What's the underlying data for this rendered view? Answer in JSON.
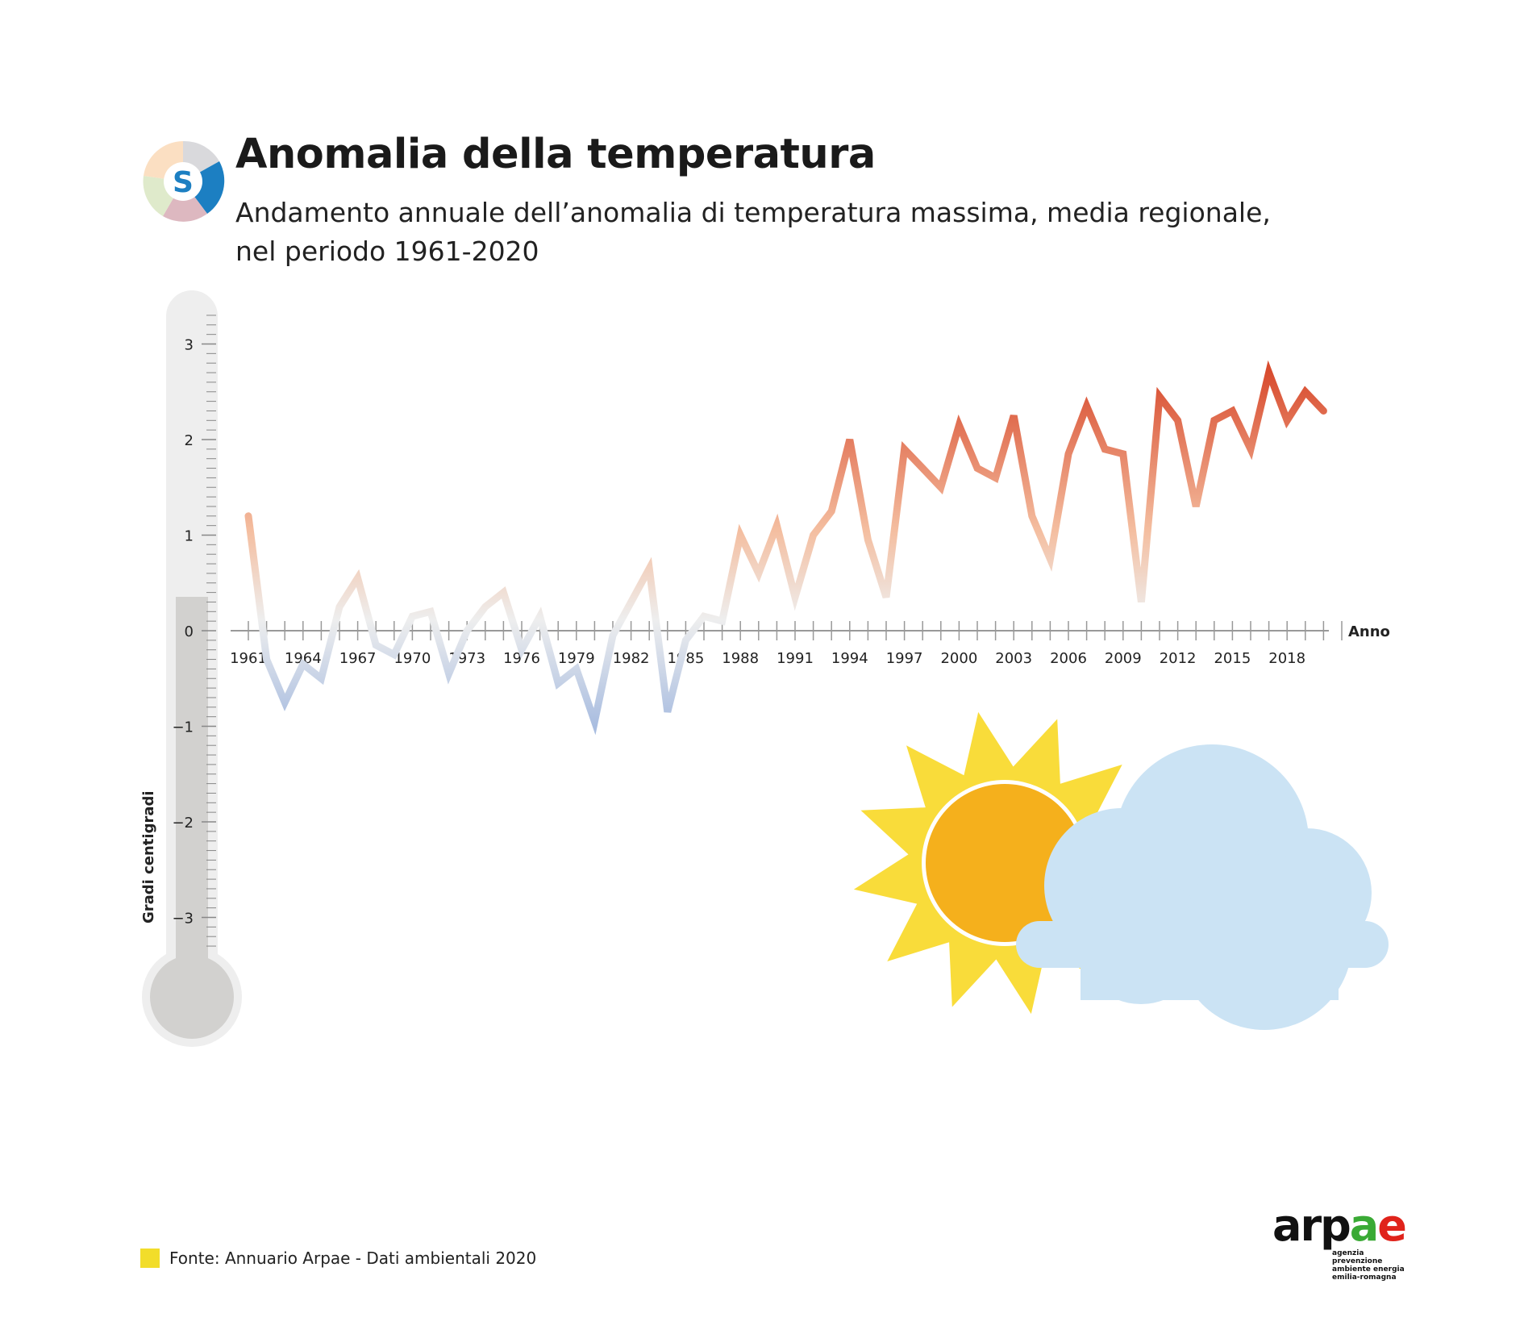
{
  "header": {
    "title": "Anomalia della temperatura",
    "subtitle_line1": "Andamento annuale dell’anomalia di temperatura massima, media regionale,",
    "subtitle_line2": "nel periodo 1961-2020",
    "logo_letter": "S"
  },
  "footer": {
    "source": "Fonte: Annuario Arpae - Dati ambientali 2020",
    "brand": "arpae",
    "brand_tagline": [
      "agenzia",
      "prevenzione",
      "ambiente energia",
      "emilia-romagna"
    ]
  },
  "colors": {
    "cold": "#a9bde0",
    "neutral": "#eeeeee",
    "warm": "#f4bea0",
    "hot": "#d84b2e",
    "sun_rays": "#f9dc3a",
    "sun_core": "#f5b01c",
    "cloud": "#cbe3f4",
    "thermometer_outer": "#eeeeee",
    "thermometer_inner": "#d2d1cf"
  },
  "icons": [
    "thermometer-icon",
    "sun-icon",
    "cloud-icon",
    "sustainability-s-icon"
  ],
  "chart_data": {
    "type": "line",
    "title": "Anomalia della temperatura",
    "xlabel": "Anno",
    "ylabel": "Gradi centigradi",
    "ylim": [
      -3.3,
      3.3
    ],
    "yticks": [
      "3",
      "2",
      "1",
      "0",
      "−1",
      "−2",
      "−3"
    ],
    "ytick_values": [
      3,
      2,
      1,
      0,
      -1,
      -2,
      -3
    ],
    "xticks": [
      "1961",
      "1964",
      "1967",
      "1970",
      "1973",
      "1976",
      "1979",
      "1982",
      "1985",
      "1988",
      "1991",
      "1994",
      "1997",
      "2000",
      "2003",
      "2006",
      "2009",
      "2012",
      "2015",
      "2018"
    ],
    "grid": false,
    "series": [
      {
        "x": [
          1961,
          1962,
          1963,
          1964,
          1965,
          1966,
          1967,
          1968,
          1969,
          1970,
          1971,
          1972,
          1973,
          1974,
          1975,
          1976,
          1977,
          1978,
          1979,
          1980,
          1981,
          1982,
          1983,
          1984,
          1985,
          1986,
          1987,
          1988,
          1989,
          1990,
          1991,
          1992,
          1993,
          1994,
          1995,
          1996,
          1997,
          1998,
          1999,
          2000,
          2001,
          2002,
          2003,
          2004,
          2005,
          2006,
          2007,
          2008,
          2009,
          2010,
          2011,
          2012,
          2013,
          2014,
          2015,
          2016,
          2017,
          2018,
          2019,
          2020
        ],
        "values": [
          1.2,
          -0.3,
          -0.75,
          -0.35,
          -0.5,
          0.25,
          0.55,
          -0.15,
          -0.25,
          0.15,
          0.2,
          -0.45,
          0.0,
          0.25,
          0.4,
          -0.2,
          0.15,
          -0.55,
          -0.4,
          -0.95,
          -0.05,
          0.3,
          0.65,
          -0.85,
          -0.1,
          0.15,
          0.1,
          1.0,
          0.6,
          1.1,
          0.35,
          1.0,
          1.25,
          2.0,
          0.95,
          0.35,
          1.9,
          1.7,
          1.5,
          2.15,
          1.7,
          1.6,
          2.25,
          1.2,
          0.75,
          1.85,
          2.35,
          1.9,
          1.85,
          0.3,
          2.45,
          2.2,
          1.3,
          2.2,
          2.3,
          1.9,
          2.7,
          2.2,
          2.5,
          2.3
        ]
      }
    ]
  }
}
